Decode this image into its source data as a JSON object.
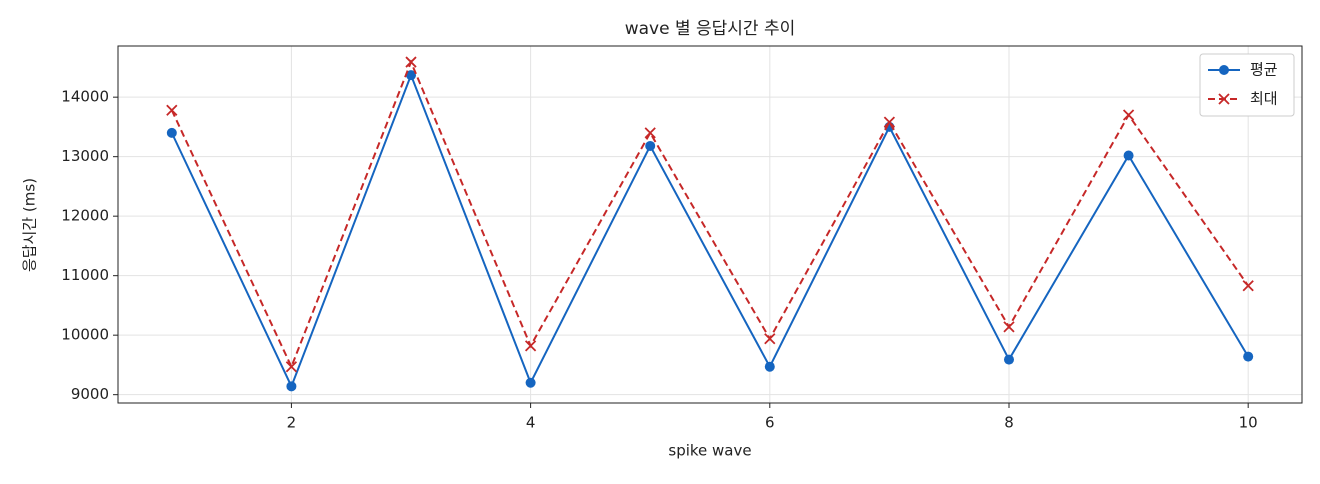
{
  "chart_data": {
    "type": "line",
    "title": "wave 별 응답시간 추이",
    "xlabel": "spike wave",
    "ylabel": "응답시간 (ms)",
    "x": [
      1,
      2,
      3,
      4,
      5,
      6,
      7,
      8,
      9,
      10
    ],
    "series": [
      {
        "name": "평균",
        "color": "#1565c0",
        "marker": "o",
        "linestyle": "solid",
        "values": [
          13400,
          9140,
          14370,
          9200,
          13180,
          9470,
          13500,
          9590,
          13020,
          9640
        ]
      },
      {
        "name": "최대",
        "color": "#c62828",
        "marker": "x",
        "linestyle": "dashed",
        "values": [
          13780,
          9470,
          14590,
          9820,
          13400,
          9940,
          13580,
          10140,
          13700,
          10830
        ]
      }
    ],
    "xlim": [
      0.55,
      10.45
    ],
    "xticks": [
      2,
      4,
      6,
      8,
      10
    ],
    "ylim": [
      8860,
      14860
    ],
    "yticks": [
      9000,
      10000,
      11000,
      12000,
      13000,
      14000
    ],
    "grid": true,
    "legend": "upper right"
  }
}
